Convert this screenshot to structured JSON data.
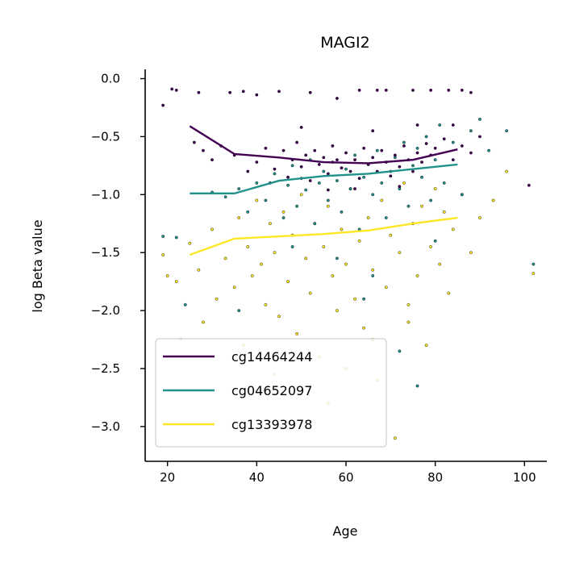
{
  "chart_data": {
    "type": "scatter",
    "title": "MAGI2",
    "xlabel": "Age",
    "ylabel": "log Beta value",
    "xlim": [
      15,
      105
    ],
    "ylim": [
      -3.3,
      0.08
    ],
    "xticks": [
      20,
      40,
      60,
      80,
      100
    ],
    "yticks": [
      0.0,
      -0.5,
      -1.0,
      -1.5,
      -2.0,
      -2.5,
      -3.0
    ],
    "xtick_labels": [
      "20",
      "40",
      "60",
      "80",
      "100"
    ],
    "ytick_labels": [
      "0.0",
      "−0.5",
      "−1.0",
      "−1.5",
      "−2.0",
      "−2.5",
      "−3.0"
    ],
    "legend_position": "lower-left",
    "grid": false,
    "series": [
      {
        "name": "cg14464244",
        "color": "#440154",
        "trend_x": [
          25,
          35,
          45,
          55,
          65,
          75,
          85
        ],
        "trend_y": [
          -0.41,
          -0.65,
          -0.68,
          -0.72,
          -0.73,
          -0.7,
          -0.61
        ],
        "scatter": [
          [
            19,
            -0.23
          ],
          [
            21,
            -0.09
          ],
          [
            22,
            -0.1
          ],
          [
            27,
            -0.12
          ],
          [
            34,
            -0.12
          ],
          [
            37,
            -0.11
          ],
          [
            40,
            -0.14
          ],
          [
            45,
            -0.11
          ],
          [
            52,
            -0.12
          ],
          [
            58,
            -0.17
          ],
          [
            63,
            -0.1
          ],
          [
            67,
            -0.1
          ],
          [
            69,
            -0.1
          ],
          [
            75,
            -0.1
          ],
          [
            79,
            -0.1
          ],
          [
            83,
            -0.1
          ],
          [
            86,
            -0.1
          ],
          [
            88,
            -0.12
          ],
          [
            101,
            -0.92
          ],
          [
            26,
            -0.55
          ],
          [
            28,
            -0.62
          ],
          [
            30,
            -0.7
          ],
          [
            32,
            -0.58
          ],
          [
            35,
            -0.66
          ],
          [
            38,
            -0.8
          ],
          [
            40,
            -0.72
          ],
          [
            42,
            -0.6
          ],
          [
            44,
            -0.78
          ],
          [
            46,
            -0.62
          ],
          [
            47,
            -0.85
          ],
          [
            48,
            -0.7
          ],
          [
            49,
            -0.55
          ],
          [
            50,
            -0.76
          ],
          [
            51,
            -0.66
          ],
          [
            52,
            -0.88
          ],
          [
            53,
            -0.62
          ],
          [
            54,
            -0.74
          ],
          [
            55,
            -0.68
          ],
          [
            56,
            -0.82
          ],
          [
            57,
            -0.58
          ],
          [
            58,
            -0.7
          ],
          [
            59,
            -0.77
          ],
          [
            60,
            -0.64
          ],
          [
            61,
            -0.8
          ],
          [
            62,
            -0.7
          ],
          [
            63,
            -0.86
          ],
          [
            64,
            -0.6
          ],
          [
            65,
            -0.74
          ],
          [
            66,
            -0.68
          ],
          [
            67,
            -0.8
          ],
          [
            68,
            -0.62
          ],
          [
            69,
            -0.72
          ],
          [
            70,
            -0.84
          ],
          [
            71,
            -0.66
          ],
          [
            72,
            -0.76
          ],
          [
            73,
            -0.58
          ],
          [
            74,
            -0.7
          ],
          [
            75,
            -0.8
          ],
          [
            76,
            -0.64
          ],
          [
            77,
            -0.72
          ],
          [
            78,
            -0.56
          ],
          [
            79,
            -0.66
          ],
          [
            80,
            -0.6
          ],
          [
            82,
            -0.52
          ],
          [
            84,
            -0.7
          ],
          [
            86,
            -0.58
          ],
          [
            88,
            -0.64
          ],
          [
            90,
            -0.5
          ],
          [
            43,
            -0.9
          ],
          [
            56,
            -0.96
          ],
          [
            62,
            -0.95
          ],
          [
            72,
            -0.93
          ],
          [
            50,
            -0.42
          ],
          [
            66,
            -0.45
          ],
          [
            76,
            -0.4
          ],
          [
            84,
            -0.4
          ]
        ]
      },
      {
        "name": "cg04652097",
        "color": "#21918c",
        "trend_x": [
          25,
          35,
          45,
          55,
          65,
          75,
          85
        ],
        "trend_y": [
          -0.99,
          -0.99,
          -0.88,
          -0.84,
          -0.82,
          -0.78,
          -0.74
        ],
        "scatter": [
          [
            19,
            -1.36
          ],
          [
            22,
            -1.37
          ],
          [
            24,
            -1.95
          ],
          [
            30,
            -0.98
          ],
          [
            33,
            -1.02
          ],
          [
            36,
            -0.95
          ],
          [
            38,
            -1.15
          ],
          [
            40,
            -0.9
          ],
          [
            42,
            -1.05
          ],
          [
            44,
            -0.82
          ],
          [
            46,
            -1.2
          ],
          [
            47,
            -0.92
          ],
          [
            48,
            -0.75
          ],
          [
            49,
            -1.1
          ],
          [
            50,
            -0.86
          ],
          [
            51,
            -0.96
          ],
          [
            52,
            -0.7
          ],
          [
            53,
            -1.25
          ],
          [
            54,
            -0.9
          ],
          [
            55,
            -0.8
          ],
          [
            56,
            -1.05
          ],
          [
            57,
            -0.72
          ],
          [
            58,
            -0.88
          ],
          [
            59,
            -1.15
          ],
          [
            60,
            -0.78
          ],
          [
            61,
            -0.95
          ],
          [
            62,
            -0.66
          ],
          [
            63,
            -1.3
          ],
          [
            64,
            -0.85
          ],
          [
            65,
            -0.74
          ],
          [
            66,
            -1.0
          ],
          [
            67,
            -0.62
          ],
          [
            68,
            -0.9
          ],
          [
            69,
            -1.2
          ],
          [
            70,
            -0.8
          ],
          [
            71,
            -0.68
          ],
          [
            72,
            -0.95
          ],
          [
            73,
            -0.55
          ],
          [
            74,
            -1.1
          ],
          [
            75,
            -0.75
          ],
          [
            76,
            -0.6
          ],
          [
            77,
            -0.85
          ],
          [
            78,
            -0.5
          ],
          [
            79,
            -1.05
          ],
          [
            80,
            -0.7
          ],
          [
            81,
            -0.4
          ],
          [
            82,
            -0.9
          ],
          [
            84,
            -0.55
          ],
          [
            86,
            -1.0
          ],
          [
            88,
            -0.45
          ],
          [
            90,
            -0.35
          ],
          [
            92,
            -0.62
          ],
          [
            96,
            -0.45
          ],
          [
            102,
            -1.6
          ],
          [
            72,
            -2.35
          ],
          [
            76,
            -2.65
          ],
          [
            58,
            -1.55
          ],
          [
            66,
            -1.7
          ],
          [
            48,
            -1.45
          ],
          [
            36,
            -2.0
          ],
          [
            64,
            -1.9
          ],
          [
            80,
            -1.4
          ]
        ]
      },
      {
        "name": "cg13393978",
        "color": "#fde725",
        "trend_x": [
          25,
          35,
          45,
          55,
          65,
          75,
          85
        ],
        "trend_y": [
          -1.52,
          -1.38,
          -1.36,
          -1.34,
          -1.31,
          -1.25,
          -1.2
        ],
        "scatter": [
          [
            19,
            -1.52
          ],
          [
            20,
            -1.7
          ],
          [
            22,
            -1.75
          ],
          [
            23,
            -2.25
          ],
          [
            25,
            -1.42
          ],
          [
            27,
            -1.65
          ],
          [
            28,
            -2.1
          ],
          [
            30,
            -1.3
          ],
          [
            31,
            -1.9
          ],
          [
            33,
            -1.55
          ],
          [
            35,
            -1.8
          ],
          [
            36,
            -1.2
          ],
          [
            37,
            -2.3
          ],
          [
            38,
            -1.45
          ],
          [
            39,
            -1.7
          ],
          [
            40,
            -1.05
          ],
          [
            41,
            -1.6
          ],
          [
            42,
            -1.95
          ],
          [
            43,
            -1.25
          ],
          [
            44,
            -1.5
          ],
          [
            45,
            -2.05
          ],
          [
            46,
            -1.15
          ],
          [
            47,
            -1.75
          ],
          [
            48,
            -1.35
          ],
          [
            49,
            -2.2
          ],
          [
            50,
            -1.0
          ],
          [
            51,
            -1.55
          ],
          [
            52,
            -1.85
          ],
          [
            53,
            -1.25
          ],
          [
            54,
            -2.4
          ],
          [
            55,
            -1.45
          ],
          [
            56,
            -1.1
          ],
          [
            57,
            -1.7
          ],
          [
            58,
            -2.0
          ],
          [
            59,
            -1.3
          ],
          [
            60,
            -1.6
          ],
          [
            61,
            -0.95
          ],
          [
            62,
            -1.9
          ],
          [
            63,
            -1.4
          ],
          [
            64,
            -2.15
          ],
          [
            65,
            -1.2
          ],
          [
            66,
            -1.65
          ],
          [
            67,
            -2.6
          ],
          [
            68,
            -1.05
          ],
          [
            69,
            -1.8
          ],
          [
            70,
            -1.35
          ],
          [
            71,
            -3.1
          ],
          [
            72,
            -1.5
          ],
          [
            73,
            -0.9
          ],
          [
            74,
            -1.95
          ],
          [
            75,
            -1.25
          ],
          [
            76,
            -1.7
          ],
          [
            77,
            -1.1
          ],
          [
            78,
            -2.3
          ],
          [
            79,
            -1.45
          ],
          [
            80,
            -0.95
          ],
          [
            81,
            -1.6
          ],
          [
            82,
            -1.15
          ],
          [
            83,
            -1.85
          ],
          [
            84,
            -1.3
          ],
          [
            86,
            -1.0
          ],
          [
            88,
            -1.5
          ],
          [
            90,
            -1.2
          ],
          [
            93,
            -1.05
          ],
          [
            96,
            -0.8
          ],
          [
            102,
            -1.68
          ],
          [
            56,
            -2.8
          ],
          [
            44,
            -2.55
          ],
          [
            60,
            -2.5
          ],
          [
            66,
            -2.25
          ],
          [
            74,
            -2.1
          ]
        ]
      }
    ]
  }
}
